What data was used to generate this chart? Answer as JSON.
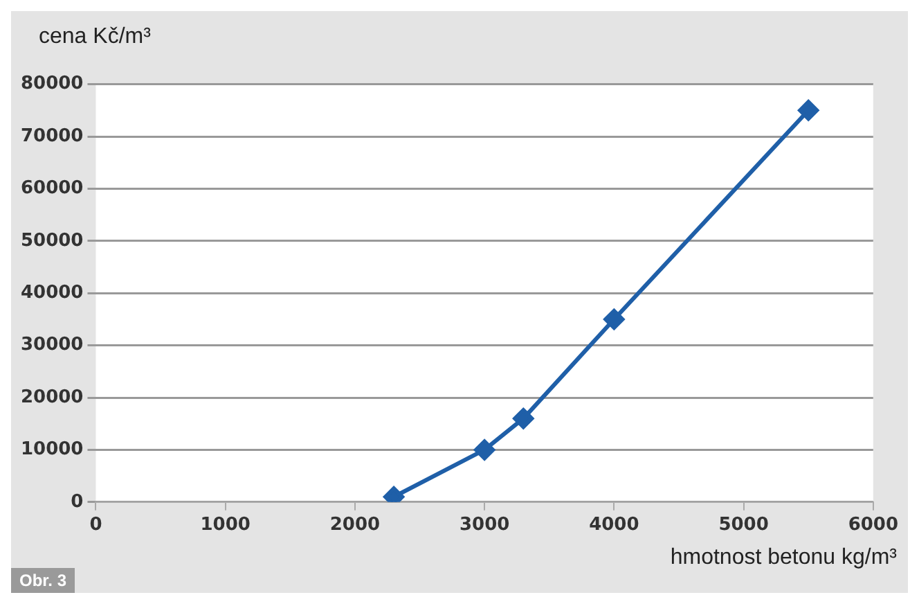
{
  "chart_data": {
    "type": "line",
    "ylabel": "cena Kč/m³",
    "xlabel": "hmotnost betonu kg/m³",
    "annotations": [
      "Obr. 3"
    ],
    "x": [
      2300,
      3000,
      3300,
      4000,
      5500
    ],
    "series": [
      {
        "color": "#1f5fa8",
        "values": [
          1000,
          10000,
          16000,
          35000,
          75000
        ]
      }
    ],
    "xlim": [
      0,
      6000
    ],
    "xticks": [
      0,
      1000,
      2000,
      3000,
      4000,
      5000,
      6000
    ],
    "ylim": [
      0,
      80000
    ],
    "yticks": [
      0,
      10000,
      20000,
      30000,
      40000,
      50000,
      60000,
      70000,
      80000
    ],
    "grid": "y",
    "legend": false,
    "marker": "diamond",
    "line_style": "solid"
  }
}
